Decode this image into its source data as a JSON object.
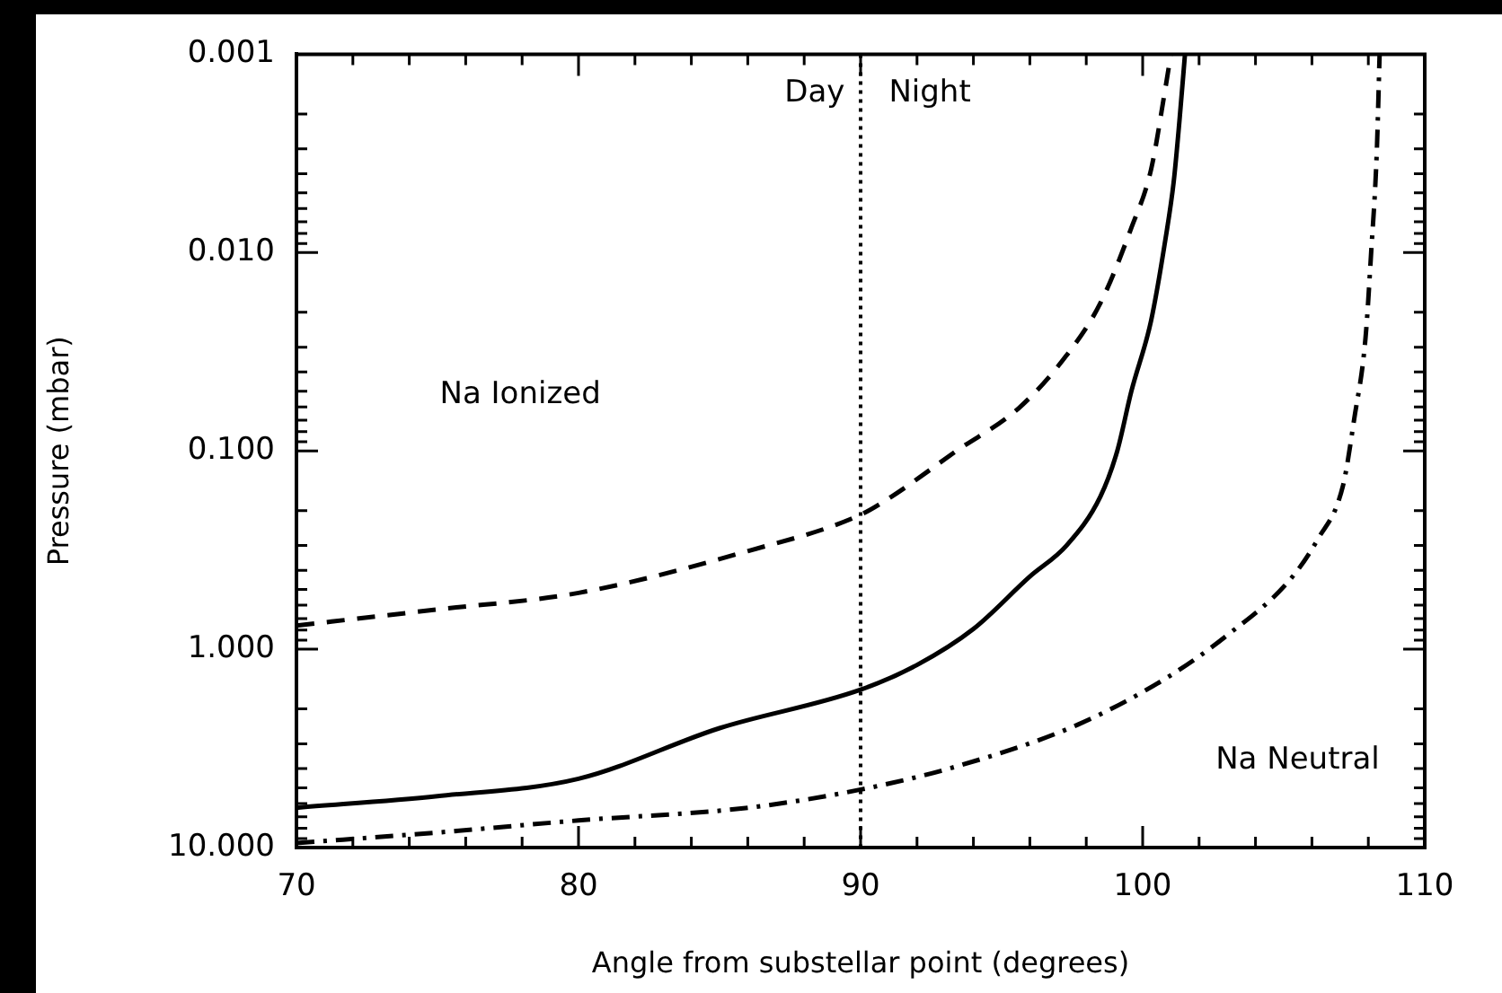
{
  "chart_data": {
    "type": "line",
    "xlabel": "Angle from substellar point (degrees)",
    "ylabel": "Pressure (mbar)",
    "xlim": [
      70,
      110
    ],
    "xticks": [
      70,
      {
        "value": 72,
        "label": null
      },
      {
        "value": 74,
        "label": null
      },
      {
        "value": 76,
        "label": null
      },
      {
        "value": 78,
        "label": null
      },
      80,
      {
        "value": 82,
        "label": null
      },
      {
        "value": 84,
        "label": null
      },
      {
        "value": 86,
        "label": null
      },
      {
        "value": 88,
        "label": null
      },
      90,
      {
        "value": 92,
        "label": null
      },
      {
        "value": 94,
        "label": null
      },
      {
        "value": 96,
        "label": null
      },
      {
        "value": 98,
        "label": null
      },
      100,
      {
        "value": 102,
        "label": null
      },
      {
        "value": 104,
        "label": null
      },
      {
        "value": 106,
        "label": null
      },
      {
        "value": 108,
        "label": null
      },
      110
    ],
    "ylim": [
      10,
      0.001
    ],
    "log": "y",
    "yticks": [
      {
        "value": 0.001,
        "label": "0.001"
      },
      {
        "value": 0.002,
        "label": null
      },
      {
        "value": 0.003,
        "label": null
      },
      {
        "value": 0.004,
        "label": null
      },
      {
        "value": 0.005,
        "label": null
      },
      {
        "value": 0.006,
        "label": null
      },
      {
        "value": 0.007,
        "label": null
      },
      {
        "value": 0.008,
        "label": null
      },
      {
        "value": 0.009,
        "label": null
      },
      {
        "value": 0.01,
        "label": "0.010"
      },
      {
        "value": 0.02,
        "label": null
      },
      {
        "value": 0.03,
        "label": null
      },
      {
        "value": 0.04,
        "label": null
      },
      {
        "value": 0.05,
        "label": null
      },
      {
        "value": 0.06,
        "label": null
      },
      {
        "value": 0.07,
        "label": null
      },
      {
        "value": 0.08,
        "label": null
      },
      {
        "value": 0.09,
        "label": null
      },
      {
        "value": 0.1,
        "label": "0.100"
      },
      {
        "value": 0.2,
        "label": null
      },
      {
        "value": 0.3,
        "label": null
      },
      {
        "value": 0.4,
        "label": null
      },
      {
        "value": 0.5,
        "label": null
      },
      {
        "value": 0.6,
        "label": null
      },
      {
        "value": 0.7,
        "label": null
      },
      {
        "value": 0.8,
        "label": null
      },
      {
        "value": 0.9,
        "label": null
      },
      {
        "value": 1,
        "label": "1.000"
      },
      {
        "value": 2,
        "label": null
      },
      {
        "value": 3,
        "label": null
      },
      {
        "value": 4,
        "label": null
      },
      {
        "value": 5,
        "label": null
      },
      {
        "value": 6,
        "label": null
      },
      {
        "value": 7,
        "label": null
      },
      {
        "value": 8,
        "label": null
      },
      {
        "value": 9,
        "label": null
      },
      {
        "value": 10,
        "label": "10.000"
      }
    ],
    "grid": false,
    "legend": false,
    "series": [
      {
        "color": "#000000",
        "line_style": "dashed",
        "x": [
          70,
          75,
          80,
          86,
          90,
          91.1,
          93.4,
          95.6,
          97.3,
          98.5,
          99.6,
          100.3,
          100.8,
          101.0
        ],
        "values": [
          0.76,
          0.63,
          0.52,
          0.32,
          0.21,
          0.17,
          0.1,
          0.061,
          0.033,
          0.018,
          0.0075,
          0.0038,
          0.0015,
          0.001
        ]
      },
      {
        "color": "#000000",
        "line_style": "solid",
        "x": [
          70,
          75,
          80,
          85,
          90,
          92,
          94,
          96,
          97.3,
          98.5,
          99.1,
          99.6,
          100.3,
          100.8,
          101.1,
          101.3,
          101.5
        ],
        "values": [
          6.3,
          5.5,
          4.5,
          2.5,
          1.6,
          1.2,
          0.79,
          0.43,
          0.3,
          0.17,
          0.1,
          0.05,
          0.022,
          0.0087,
          0.0044,
          0.0022,
          0.001
        ]
      },
      {
        "color": "#000000",
        "line_style": "dashdot",
        "x": [
          70,
          75,
          80,
          86,
          90,
          93.4,
          97.7,
          100.9,
          103,
          105.2,
          106.2,
          107.1,
          107.5,
          107.9,
          108.1,
          108.3,
          108.4
        ],
        "values": [
          9.5,
          8.4,
          7.3,
          6.3,
          5.1,
          3.9,
          2.4,
          1.38,
          0.85,
          0.45,
          0.28,
          0.15,
          0.069,
          0.027,
          0.01,
          0.0031,
          0.001
        ]
      }
    ],
    "ref_lines": [
      {
        "axis": "x",
        "value": 90,
        "label": null,
        "color": "#000000",
        "line_style": "dotted"
      }
    ],
    "annotations": [
      "Day",
      "Night",
      "Na Ionized",
      "Na Neutral"
    ]
  }
}
